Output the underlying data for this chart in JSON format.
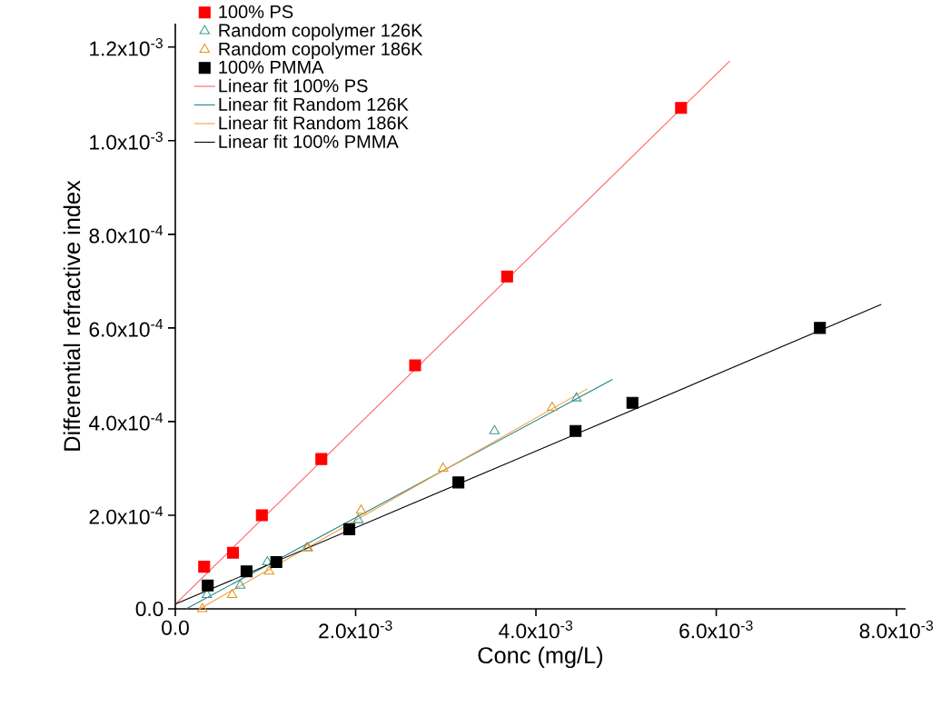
{
  "chart_data": {
    "type": "scatter",
    "xlabel": "Conc (mg/L)",
    "ylabel": "Differential refractive index",
    "xlim": [
      0,
      0.0081
    ],
    "ylim": [
      0,
      0.00125
    ],
    "xticks": [
      {
        "value": 0,
        "label": "0.0"
      },
      {
        "value": 0.002,
        "label": "2.0x10$^{-3}$"
      },
      {
        "value": 0.004,
        "label": "4.0x10$^{-3}$"
      },
      {
        "value": 0.006,
        "label": "6.0x10$^{-3}$"
      },
      {
        "value": 0.008,
        "label": "8.0x10$^{-3}$"
      }
    ],
    "yticks": [
      {
        "value": 0,
        "label": "0.0"
      },
      {
        "value": 0.0002,
        "label": "2.0x10$^{-4}$"
      },
      {
        "value": 0.0004,
        "label": "4.0x10$^{-4}$"
      },
      {
        "value": 0.0006,
        "label": "6.0x10$^{-4}$"
      },
      {
        "value": 0.0008,
        "label": "8.0x10$^{-4}$"
      },
      {
        "value": 0.001,
        "label": "1.0x10$^{-3}$"
      },
      {
        "value": 0.0012,
        "label": "1.2x10$^{-3}$"
      }
    ],
    "legend": "top left",
    "grid": false,
    "series": [
      {
        "name": "100% PS",
        "marker": "square",
        "color": "#ff0000",
        "x": [
          0.00032,
          0.00064,
          0.00096,
          0.00162,
          0.00266,
          0.00368,
          0.00561
        ],
        "values": [
          9e-05,
          0.00012,
          0.0002,
          0.00032,
          0.00052,
          0.00071,
          0.00107
        ]
      },
      {
        "name": "Random copolymer 126K",
        "marker": "triangle",
        "color": "#3a9a9a",
        "x": [
          0.00035,
          0.00072,
          0.00102,
          0.00146,
          0.00203,
          0.00354,
          0.00445
        ],
        "values": [
          3e-05,
          5e-05,
          0.0001,
          0.00013,
          0.00019,
          0.00038,
          0.00045
        ]
      },
      {
        "name": "Random copolymer 186K",
        "marker": "triangle",
        "color": "#e8901a",
        "x": [
          0.0003,
          0.00063,
          0.00104,
          0.00147,
          0.00206,
          0.00297,
          0.00418
        ],
        "values": [
          0,
          3e-05,
          8e-05,
          0.00013,
          0.00021,
          0.0003,
          0.00043
        ]
      },
      {
        "name": "100% PMMA",
        "marker": "square",
        "color": "#000000",
        "x": [
          0.00036,
          0.00079,
          0.00112,
          0.00193,
          0.00314,
          0.00444,
          0.00507,
          0.00715
        ],
        "values": [
          5e-05,
          8e-05,
          0.0001,
          0.00017,
          0.00027,
          0.00038,
          0.00044,
          0.0006
        ]
      },
      {
        "name": "Linear fit 100% PS",
        "type": "line",
        "color": "#ff6060",
        "x": [
          0,
          0.00615
        ],
        "values": [
          1e-05,
          0.00117
        ]
      },
      {
        "name": "Linear fit Random 126K",
        "type": "line",
        "color": "#1f8080",
        "x": [
          0.00012,
          0.00485
        ],
        "values": [
          0,
          0.00049
        ]
      },
      {
        "name": "Linear fit Random 186K",
        "type": "line",
        "color": "#f0a040",
        "x": [
          0.00027,
          0.00457
        ],
        "values": [
          0,
          0.00047
        ]
      },
      {
        "name": "Linear fit 100% PMMA",
        "type": "line",
        "color": "#000000",
        "x": [
          0,
          0.00783
        ],
        "values": [
          1e-05,
          0.00065
        ]
      }
    ]
  }
}
